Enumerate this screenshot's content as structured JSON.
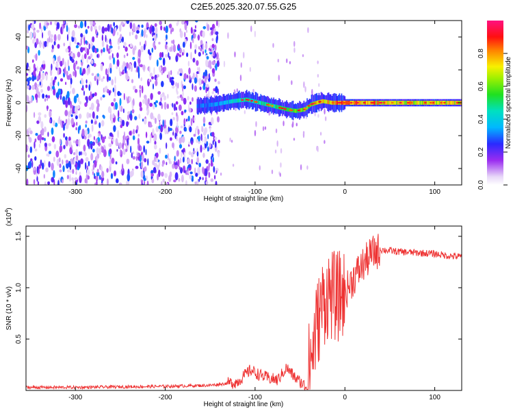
{
  "title": "C2E5.2025.320.07.55.G25",
  "colors": {
    "signal": "#ee3333",
    "axis": "#000000"
  },
  "chart_data": [
    {
      "type": "heatmap",
      "title": "C2E5.2025.320.07.55.G25",
      "xlabel": "Height of straight line (km)",
      "ylabel": "Frequency (Hz)",
      "xlim": [
        -355,
        130
      ],
      "ylim": [
        -50,
        50
      ],
      "xticks": [
        -300,
        -200,
        -100,
        0,
        100
      ],
      "xtick_labels": [
        "-300",
        "-200",
        "-100",
        "0",
        "100"
      ],
      "yticks": [
        -40,
        -20,
        0,
        20,
        40
      ],
      "ytick_labels": [
        "-40",
        "-20",
        "0",
        "20",
        "40"
      ],
      "colorbar": {
        "label": "Normalized spectral amplitude",
        "range": [
          0,
          1
        ],
        "ticks": [
          0.0,
          0.2,
          0.4,
          0.6,
          0.8
        ],
        "tick_labels": [
          "0.0",
          "0.2",
          "0.4",
          "0.6",
          "0.8"
        ]
      },
      "noise_region_km": [
        -355,
        -140
      ],
      "tone_track": {
        "heights_km": [
          -165,
          -145,
          -125,
          -110,
          -95,
          -80,
          -65,
          -55,
          -45,
          -38,
          -32,
          -25,
          -15,
          0,
          20,
          60,
          100,
          130
        ],
        "freq_hz": [
          -2,
          -1,
          1,
          2,
          0,
          -2,
          -4,
          -5,
          -4,
          -1,
          0,
          1,
          0,
          0,
          0,
          0,
          0,
          0
        ],
        "amplitude": [
          0.3,
          0.35,
          0.45,
          0.5,
          0.5,
          0.55,
          0.55,
          0.6,
          0.65,
          0.7,
          0.75,
          0.8,
          0.85,
          0.9,
          0.85,
          0.8,
          0.78,
          0.75
        ]
      }
    },
    {
      "type": "line",
      "xlabel": "Height of straight line (km)",
      "ylabel": "SNR (10 * v/v)",
      "y_scale_label": "(x10",
      "y_scale_exp": "4",
      "xlim": [
        -355,
        130
      ],
      "ylim": [
        0,
        1.6
      ],
      "xticks": [
        -300,
        -200,
        -100,
        0,
        100
      ],
      "xtick_labels": [
        "-300",
        "-200",
        "-100",
        "0",
        "100"
      ],
      "yticks": [
        0.5,
        1.0,
        1.5
      ],
      "ytick_labels": [
        "0.5",
        "1.0",
        "1.5"
      ],
      "series": [
        {
          "name": "SNR",
          "x": [
            -355,
            -300,
            -200,
            -150,
            -120,
            -105,
            -95,
            -85,
            -75,
            -65,
            -55,
            -45,
            -38,
            -32,
            -25,
            -18,
            -10,
            0,
            10,
            20,
            30,
            40,
            60,
            80,
            100,
            115,
            130
          ],
          "y": [
            0.03,
            0.03,
            0.04,
            0.05,
            0.08,
            0.2,
            0.15,
            0.12,
            0.1,
            0.22,
            0.12,
            0.05,
            0.3,
            0.6,
            0.85,
            0.95,
            0.9,
            0.95,
            1.1,
            1.22,
            1.33,
            1.37,
            1.35,
            1.34,
            1.33,
            1.31,
            1.3
          ]
        }
      ]
    }
  ]
}
